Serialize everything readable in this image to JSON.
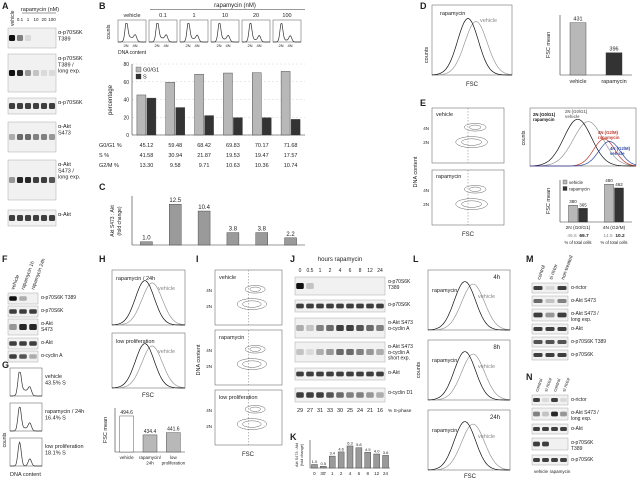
{
  "panel_labels": [
    "A",
    "B",
    "C",
    "D",
    "E",
    "F",
    "G",
    "H",
    "I",
    "J",
    "K",
    "L",
    "M",
    "N"
  ],
  "A": {
    "header": "rapamycin (nM)",
    "lanes": [
      "vehicle",
      "0.1",
      "1",
      "10",
      "20",
      "100"
    ],
    "blots": [
      [
        "α-p70S6K",
        "T389"
      ],
      [
        "α-p70S6K",
        "T389 /",
        "long exp."
      ],
      [
        "α-p70S6K"
      ],
      [
        "α-Akt",
        "S473"
      ],
      [
        "α-Akt",
        "S473 /",
        "long exp."
      ],
      [
        "α-Akt"
      ]
    ]
  },
  "B": {
    "header": "rapamycin (nM)",
    "histograms": [
      "vehicle",
      "0.1",
      "1",
      "10",
      "20",
      "100"
    ],
    "hist_y": "counts",
    "hist_x": "DNA content",
    "hist_ticks": [
      "2N",
      "4N"
    ],
    "y_label": "percentage",
    "ylim": [
      0,
      80
    ],
    "yticks": [
      0,
      20,
      40,
      60,
      80
    ],
    "series": [
      {
        "name": "G0/G1",
        "color": "#b8b8b8",
        "values": [
          45.12,
          59.48,
          68.42,
          69.83,
          70.17,
          71.68
        ]
      },
      {
        "name": "S",
        "color": "#333333",
        "values": [
          41.58,
          30.94,
          21.87,
          19.53,
          19.47,
          17.57
        ]
      }
    ],
    "row_labels": [
      "G0/G1 %",
      "S %",
      "G2/M %"
    ],
    "g2m": [
      "13.30",
      "9.58",
      "9.71",
      "10.63",
      "10.36",
      "10.74"
    ]
  },
  "C": {
    "y_label": [
      "Akt S473 : Akt",
      "(fold change)"
    ],
    "values": [
      1.0,
      12.5,
      10.4,
      3.8,
      3.8,
      2.2
    ],
    "value_labels": [
      "1.0",
      "12.5",
      "10.4",
      "3.8",
      "3.8",
      "2.2"
    ],
    "ylim": [
      0,
      15
    ],
    "color": "#9a9a9a"
  },
  "D": {
    "hist_labels": [
      "rapamycin",
      "vehicle"
    ],
    "hist_y": "counts",
    "hist_x": "FSC",
    "y_label": "FSC mean",
    "categories": [
      "vehicle",
      "rapamycin"
    ],
    "values": [
      431,
      396
    ],
    "ylim": [
      370,
      440
    ],
    "colors": [
      "#b8b8b8",
      "#333333"
    ]
  },
  "E": {
    "contours": [
      "vehicle",
      "rapamycin"
    ],
    "contour_ticks": [
      "2N",
      "4N"
    ],
    "contour_y": "DNA content",
    "contour_x": "FSC",
    "hist_labels": [
      [
        "2N (G0/G1)",
        "rapamycin"
      ],
      [
        "2N (G0/G1)",
        "vehicle"
      ],
      [
        "4N (G2/M)",
        "rapamycin"
      ],
      [
        "4N (G2/M)",
        "vehicle"
      ]
    ],
    "hist_y": "counts",
    "y_label": "FSC mean",
    "categories": [
      "2N (G0/G1)",
      "4N (G2/M)"
    ],
    "ylim": [
      300,
      500
    ],
    "series": [
      {
        "name": "vehicle",
        "color": "#b8b8b8",
        "values": [
          380,
          480
        ]
      },
      {
        "name": "rapamycin",
        "color": "#333333",
        "values": [
          365,
          462
        ]
      }
    ],
    "cell_pct": [
      [
        "46.6",
        "69.7"
      ],
      [
        "14.5",
        "10.2"
      ]
    ],
    "cell_pct_label": "% of total cells"
  },
  "F": {
    "lanes": [
      "vehicle",
      "rapamycin 1h",
      "rapamycin 24h"
    ],
    "blots": [
      [
        "α-p70S6K T389"
      ],
      [
        "α-p70S6K"
      ],
      [
        "α-Akt",
        "S473"
      ],
      [
        "α-Akt"
      ],
      [
        "α-cyclin A"
      ]
    ]
  },
  "G": {
    "histograms": [
      [
        "vehicle",
        "43.5% S"
      ],
      [
        "rapamycin / 24h",
        "16.4% S"
      ],
      [
        "low proliferation",
        "18.1% S"
      ]
    ],
    "hist_y": "counts",
    "hist_x": "DNA content"
  },
  "H": {
    "hist_labels": [
      [
        "rapamycin / 24h",
        "vehicle"
      ],
      [
        "low proliferation",
        "vehicle"
      ]
    ],
    "hist_x": "FSC",
    "y_label": "FSC mean",
    "categories": [
      [
        "vehicle"
      ],
      [
        "rapamycin/",
        "24h"
      ],
      [
        "low",
        "proliferation"
      ]
    ],
    "values": [
      494.6,
      434.4,
      441.6
    ],
    "ylim": [
      380,
      520
    ]
  },
  "I": {
    "contours": [
      "vehicle",
      "rapamycin",
      "low proliferation"
    ],
    "contour_ticks": [
      "2N",
      "4N"
    ],
    "contour_y": "DNA content",
    "contour_x": "FSC"
  },
  "J": {
    "header": "hours rapamycin",
    "times": [
      "0",
      "0.5",
      "1",
      "2",
      "4",
      "6",
      "8",
      "12",
      "24"
    ],
    "blots": [
      [
        "α-p70S6K",
        "T389"
      ],
      [
        "α-p70S6K"
      ],
      [
        "α-Akt S473",
        "α-cyclin A"
      ],
      [
        "α-Akt S473",
        "α-cyclin A",
        "short exp."
      ],
      [
        "α-Akt"
      ],
      [
        "α-cyclin D1"
      ]
    ],
    "s_phase": [
      "29",
      "27",
      "31",
      "33",
      "30",
      "25",
      "24",
      "21",
      "16"
    ],
    "s_phase_label": "% S-phase"
  },
  "K": {
    "y_label": [
      "Akt S473 : Akt",
      "(fold change)"
    ],
    "categories": [
      "0",
      "30'",
      "1",
      "2",
      "4",
      "6",
      "8",
      "12",
      "24"
    ],
    "values": [
      1.0,
      0.5,
      3.4,
      4.6,
      6.3,
      5.8,
      4.5,
      4.0,
      3.6
    ],
    "value_labels": [
      "1.0",
      "0.5",
      "3.4",
      "4.6",
      "6.3",
      "5.8",
      "4.5",
      "4.0",
      "3.6"
    ],
    "ylim": [
      0,
      8
    ]
  },
  "L": {
    "histograms": [
      "4h",
      "8h",
      "24h"
    ],
    "hist_labels": [
      "rapamycin",
      "vehicle"
    ],
    "hist_y": "counts",
    "hist_x": "FSC"
  },
  "M": {
    "lanes": [
      "control",
      "si rictor",
      "non-treated"
    ],
    "blots": [
      [
        "α-rictor"
      ],
      [
        "α-Akt S473"
      ],
      [
        "α-Akt S473 /",
        "long exp."
      ],
      [
        "α-Akt"
      ],
      [
        "α-p70S6K T389"
      ],
      [
        "α-p70S6K"
      ]
    ]
  },
  "N": {
    "lanes": [
      "control",
      "si rictor",
      "control",
      "si rictor"
    ],
    "treatments": [
      "vehicle",
      "rapamycin"
    ],
    "blots": [
      [
        "α-rictor"
      ],
      [
        "α-Akt S473 /",
        "long exp."
      ],
      [
        "α-Akt"
      ],
      [
        "α-p70S6K",
        "T389"
      ],
      [
        "α-p70S6K"
      ]
    ]
  }
}
